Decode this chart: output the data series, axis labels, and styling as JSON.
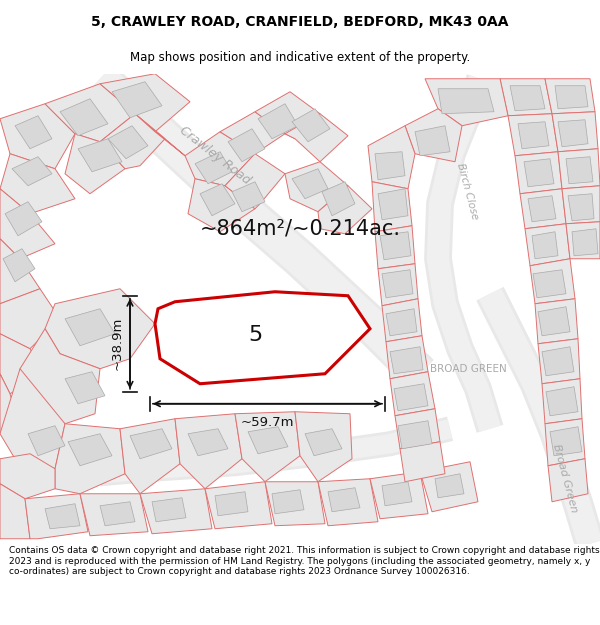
{
  "title": "5, CRAWLEY ROAD, CRANFIELD, BEDFORD, MK43 0AA",
  "subtitle": "Map shows position and indicative extent of the property.",
  "area_label": "~864m²/~0.214ac.",
  "dim_width": "~59.7m",
  "dim_height": "~38.9m",
  "label_number": "5",
  "road_label1": "Crawley Road",
  "road_label2": "BROAD GREEN",
  "road_label3": "Birch Close",
  "road_label3b": "Broad Green",
  "footer": "Contains OS data © Crown copyright and database right 2021. This information is subject to Crown copyright and database rights 2023 and is reproduced with the permission of HM Land Registry. The polygons (including the associated geometry, namely x, y co-ordinates) are subject to Crown copyright and database rights 2023 Ordnance Survey 100026316.",
  "bg_color": "#ffffff",
  "map_bg": "#ffffff",
  "parcel_fill": "#e8e8e8",
  "parcel_edge": "#e07070",
  "parcel_lw": 0.7,
  "building_fill": "#d8d8d8",
  "building_edge": "#aaaaaa",
  "road_line_color": "#d0ccc0",
  "road_label_color": "#aaaaaa",
  "highlight_edge": "#cc0000",
  "highlight_lw": 2.2,
  "annot_color": "#111111",
  "title_fontsize": 10,
  "subtitle_fontsize": 8.5,
  "footer_fontsize": 6.5
}
